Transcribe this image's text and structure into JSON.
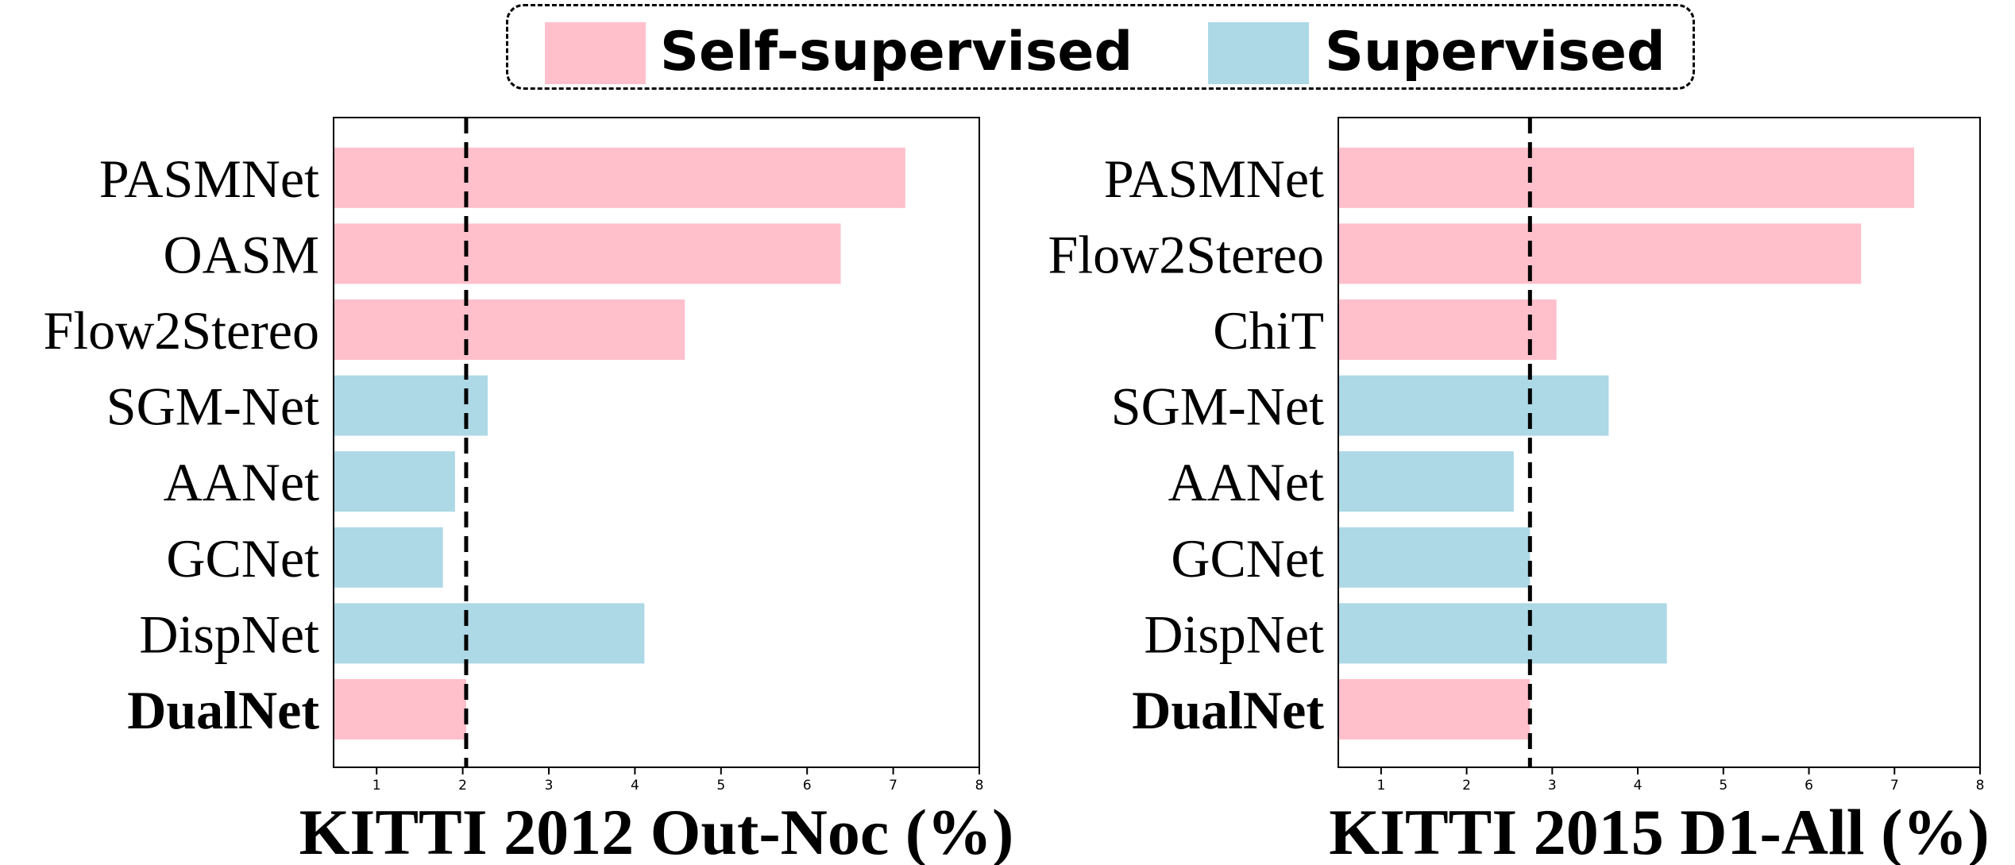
{
  "legend": {
    "items": [
      {
        "label": "Self-supervised",
        "color": "#ffc0cb"
      },
      {
        "label": "Supervised",
        "color": "#add8e6"
      }
    ]
  },
  "colors": {
    "self_supervised": "#ffc0cb",
    "supervised": "#add8e6",
    "reference_line": "#000000"
  },
  "chart_data": [
    {
      "type": "bar",
      "orientation": "horizontal",
      "xlabel": "KITTI 2012 Out-Noc (%)",
      "xlim": [
        0.5,
        8
      ],
      "xticks": [
        1,
        2,
        3,
        4,
        5,
        6,
        7,
        8
      ],
      "categories": [
        "PASMNet",
        "OASM",
        "Flow2Stereo",
        "SGM-Net",
        "AANet",
        "GCNet",
        "DispNet",
        "DualNet"
      ],
      "values": [
        7.14,
        6.39,
        4.58,
        2.29,
        1.91,
        1.77,
        4.11,
        2.04
      ],
      "groups": [
        "Self-supervised",
        "Self-supervised",
        "Self-supervised",
        "Supervised",
        "Supervised",
        "Supervised",
        "Supervised",
        "Self-supervised"
      ],
      "bold_categories": [
        "DualNet"
      ],
      "reference_line": 2.04
    },
    {
      "type": "bar",
      "orientation": "horizontal",
      "xlabel": "KITTI 2015 D1-All (%)",
      "xlim": [
        0.5,
        8
      ],
      "xticks": [
        1,
        2,
        3,
        4,
        5,
        6,
        7,
        8
      ],
      "categories": [
        "PASMNet",
        "Flow2Stereo",
        "ChiT",
        "SGM-Net",
        "AANet",
        "GCNet",
        "DispNet",
        "DualNet"
      ],
      "values": [
        7.23,
        6.61,
        3.05,
        3.66,
        2.55,
        2.74,
        4.34,
        2.74
      ],
      "groups": [
        "Self-supervised",
        "Self-supervised",
        "Self-supervised",
        "Supervised",
        "Supervised",
        "Supervised",
        "Supervised",
        "Self-supervised"
      ],
      "bold_categories": [
        "DualNet"
      ],
      "reference_line": 2.74
    }
  ]
}
